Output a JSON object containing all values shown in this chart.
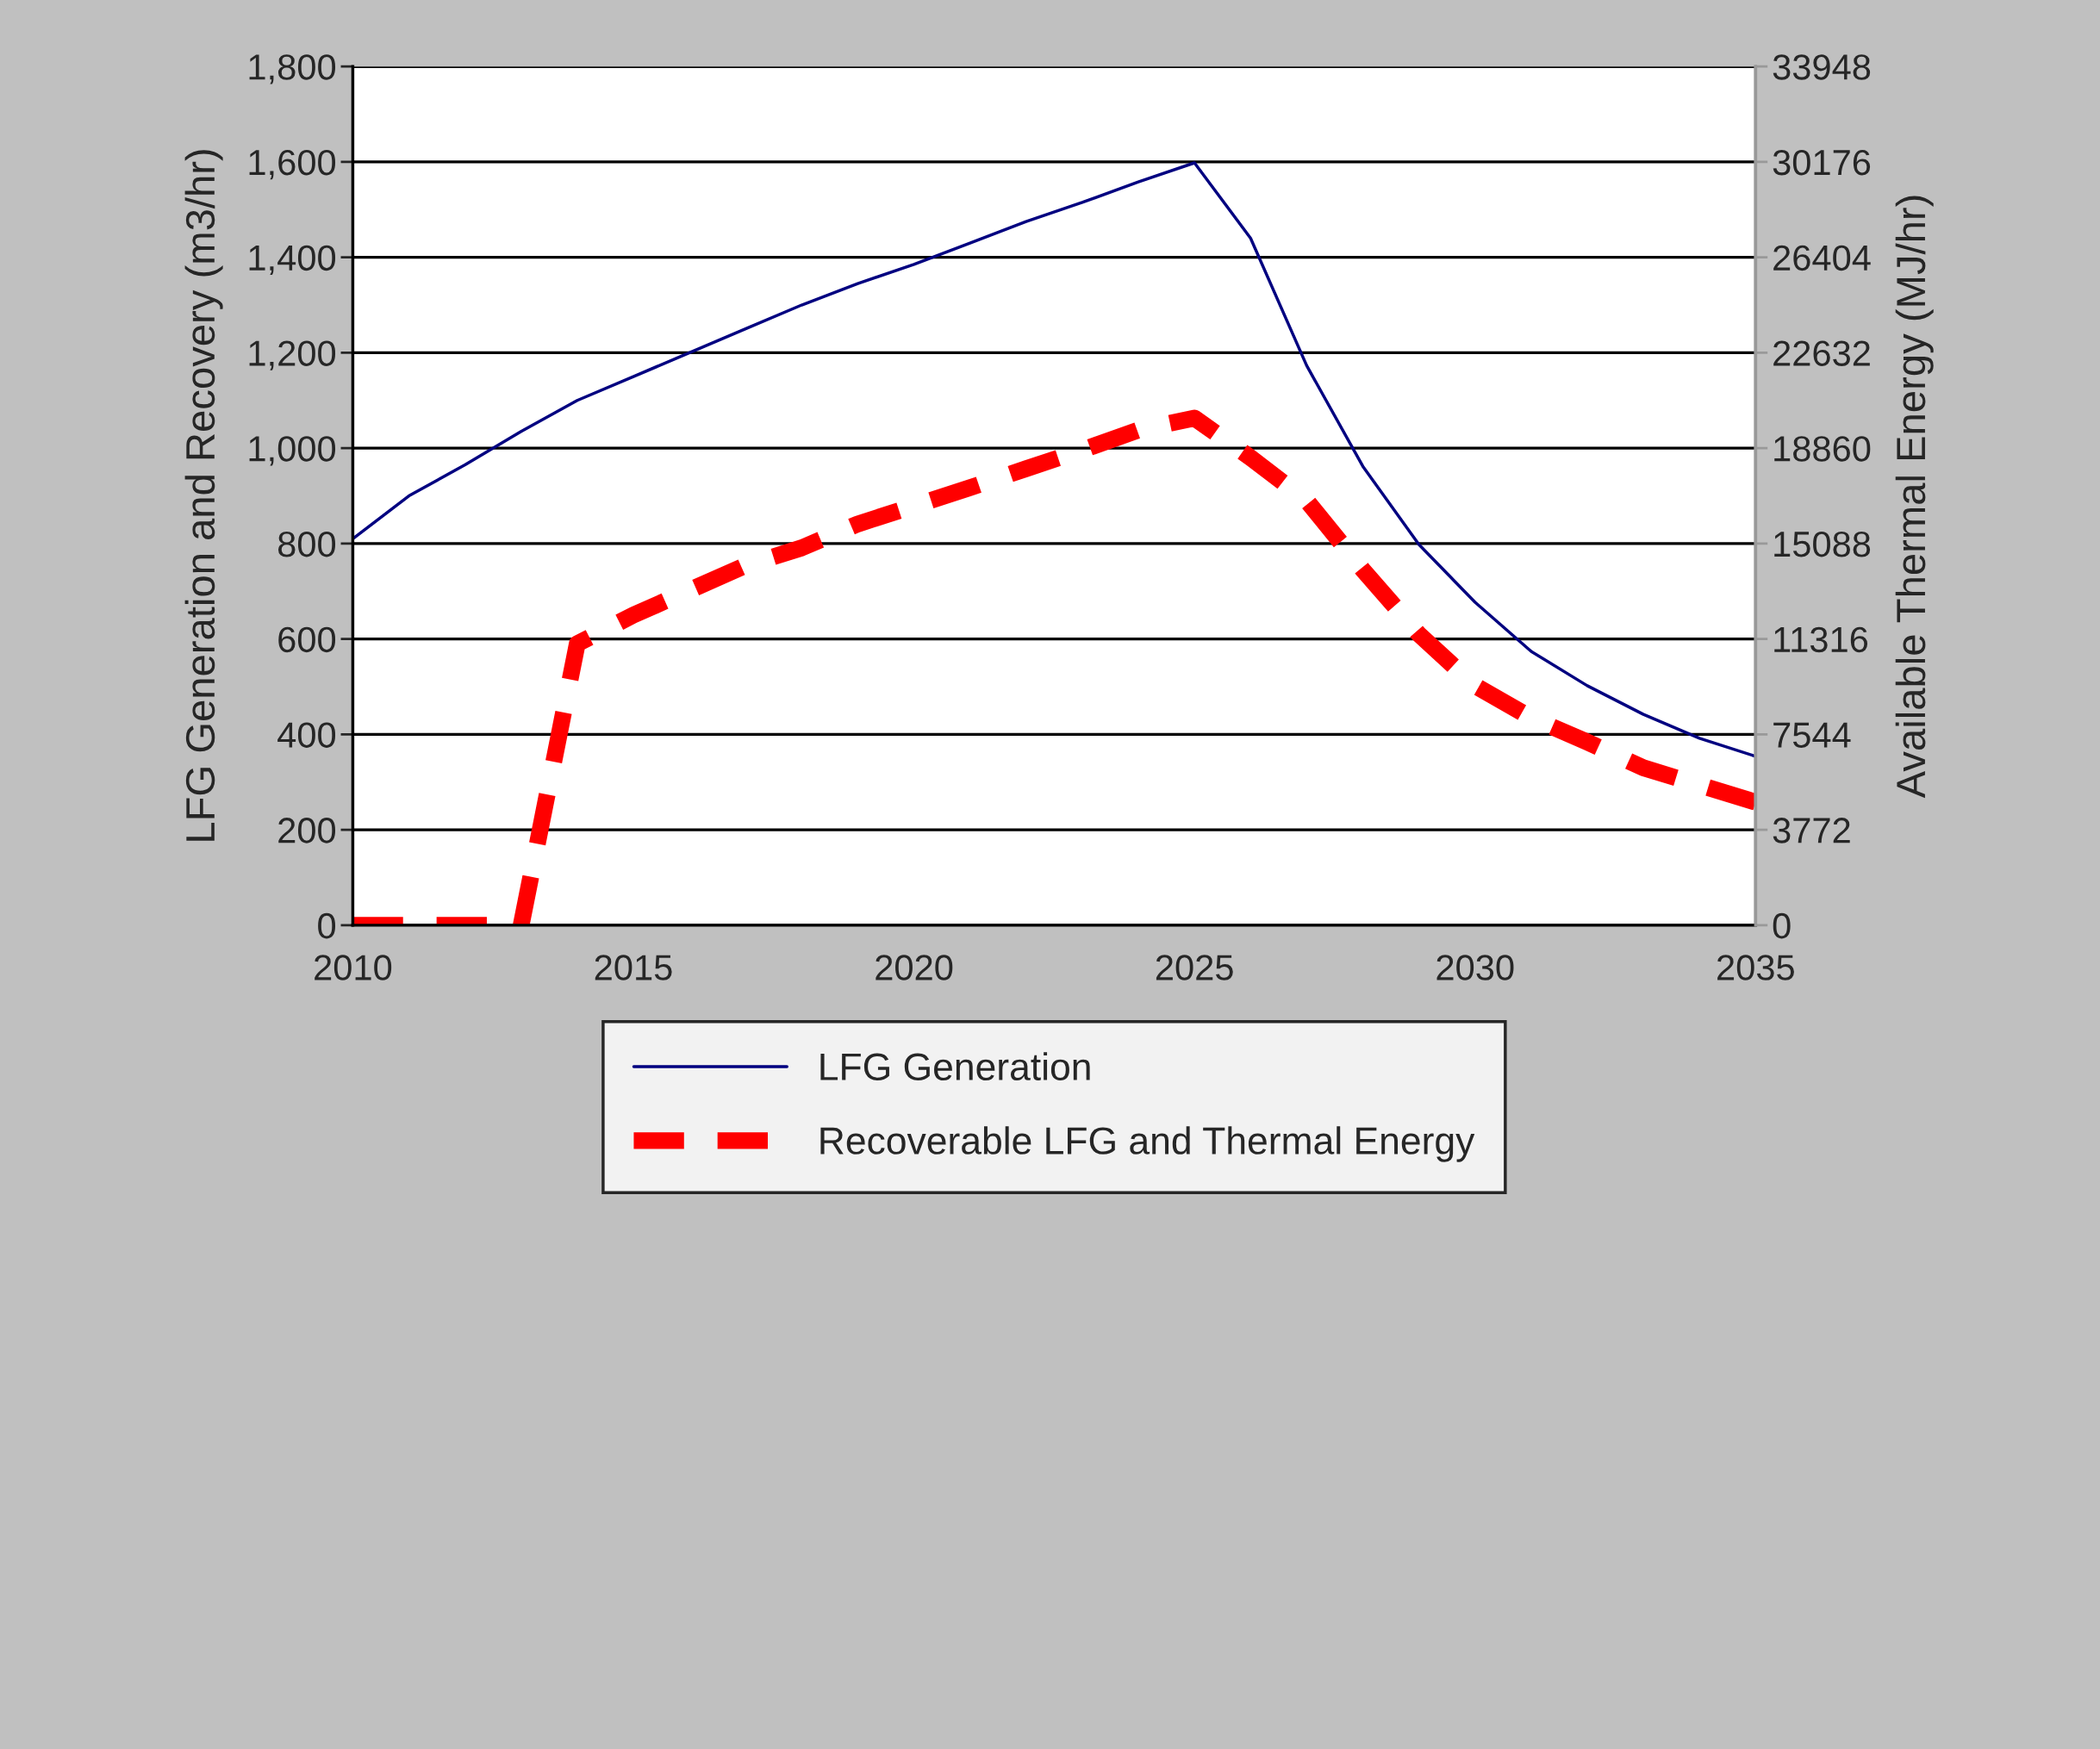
{
  "chart_data": {
    "type": "line",
    "xlabel": null,
    "ylabel": "LFG Generation and Recovery (m3/hr)",
    "y2label": "Available Thermal Energy (MJ/hr)",
    "x": [
      2010,
      2011,
      2012,
      2013,
      2014,
      2015,
      2016,
      2017,
      2018,
      2019,
      2020,
      2021,
      2022,
      2023,
      2024,
      2025,
      2026,
      2027,
      2028,
      2029,
      2030,
      2031,
      2032,
      2033,
      2034,
      2035
    ],
    "series": [
      {
        "name": "LFG Generation",
        "color": "#000080",
        "line_style": "solid",
        "values": [
          810,
          900,
          965,
          1035,
          1100,
          1150,
          1200,
          1250,
          1300,
          1345,
          1385,
          1430,
          1475,
          1515,
          1558,
          1598,
          1440,
          1173,
          962,
          798,
          677,
          574,
          502,
          442,
          392,
          354
        ]
      },
      {
        "name": "Recoverable LFG and Thermal Energy",
        "color": "#ff0000",
        "line_style": "dashed",
        "values": [
          0,
          0,
          0,
          0,
          590,
          650,
          702,
          754,
          791,
          841,
          879,
          917,
          957,
          996,
          1038,
          1063,
          980,
          890,
          745,
          610,
          502,
          435,
          384,
          330,
          294,
          258
        ]
      }
    ],
    "xlim": [
      2010,
      2035
    ],
    "xticks": [
      2010,
      2015,
      2020,
      2025,
      2030,
      2035
    ],
    "ylim": [
      0,
      1800
    ],
    "yticks": [
      {
        "value": 0,
        "label": "0"
      },
      {
        "value": 200,
        "label": "200"
      },
      {
        "value": 400,
        "label": "400"
      },
      {
        "value": 600,
        "label": "600"
      },
      {
        "value": 800,
        "label": "800"
      },
      {
        "value": 1000,
        "label": "1,000"
      },
      {
        "value": 1200,
        "label": "1,200"
      },
      {
        "value": 1400,
        "label": "1,400"
      },
      {
        "value": 1600,
        "label": "1,600"
      },
      {
        "value": 1800,
        "label": "1,800"
      }
    ],
    "y2lim": [
      0,
      33948
    ],
    "y2ticks": [
      0,
      3772,
      7544,
      11316,
      15088,
      18860,
      22632,
      26404,
      30176,
      33948
    ],
    "grid": "y",
    "legend": "bottom",
    "marker": "none"
  }
}
